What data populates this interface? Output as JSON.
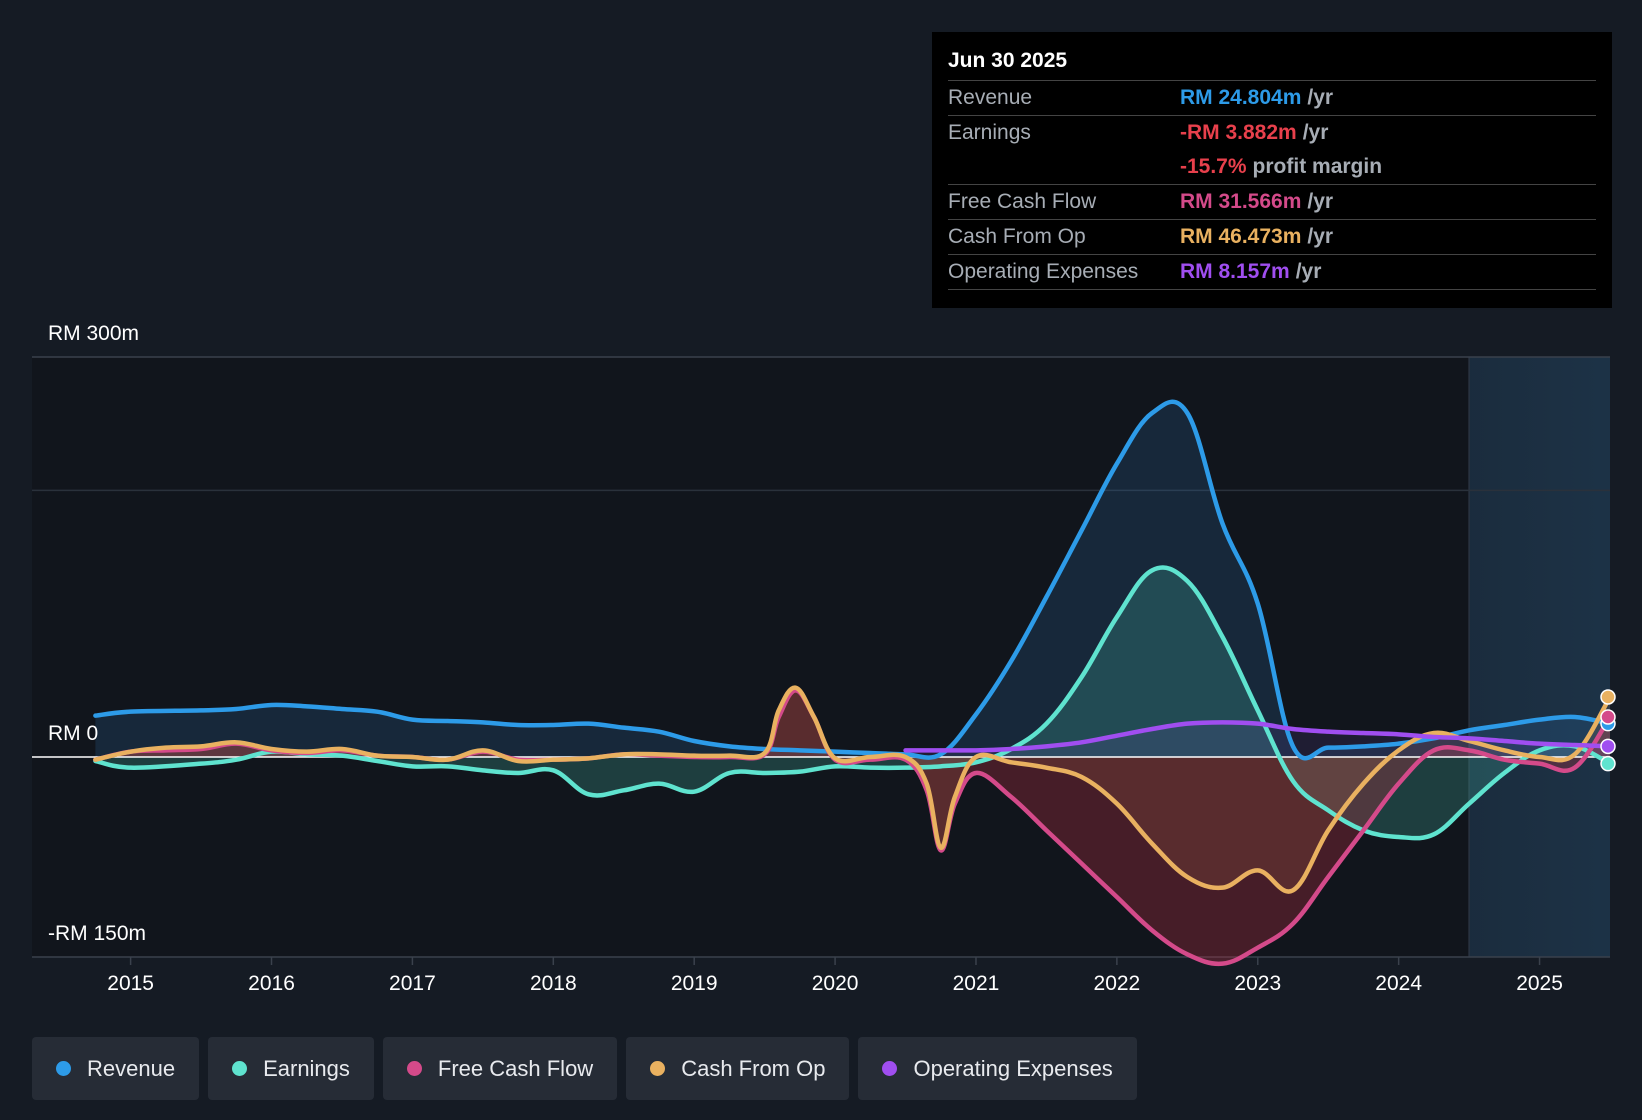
{
  "tooltip": {
    "date": "Jun 30 2025",
    "rows": [
      {
        "label": "Revenue",
        "value": "RM 24.804m",
        "unit": "/yr",
        "color": "#2d9be8"
      },
      {
        "label": "Earnings",
        "value": "-RM 3.882m",
        "unit": "/yr",
        "color": "#e8404c"
      },
      {
        "label": "",
        "value": "-15.7%",
        "unit": "profit margin",
        "color": "#e8404c"
      },
      {
        "label": "Free Cash Flow",
        "value": "RM 31.566m",
        "unit": "/yr",
        "color": "#d44a8a"
      },
      {
        "label": "Cash From Op",
        "value": "RM 46.473m",
        "unit": "/yr",
        "color": "#e9b160"
      },
      {
        "label": "Operating Expenses",
        "value": "RM 8.157m",
        "unit": "/yr",
        "color": "#a04ef0"
      }
    ]
  },
  "legend": [
    {
      "label": "Revenue",
      "color": "#2d9be8"
    },
    {
      "label": "Earnings",
      "color": "#5fe3cf"
    },
    {
      "label": "Free Cash Flow",
      "color": "#d44a8a"
    },
    {
      "label": "Cash From Op",
      "color": "#e9b160"
    },
    {
      "label": "Operating Expenses",
      "color": "#a04ef0"
    }
  ],
  "chart_data": {
    "type": "line",
    "title": "",
    "xlabel": "",
    "ylabel": "",
    "y_axis_labels": [
      "RM 300m",
      "RM 0",
      "-RM 150m"
    ],
    "ylim": [
      -150,
      300
    ],
    "xlim": [
      2014.3,
      2025.5
    ],
    "x_ticks": [
      2015,
      2016,
      2017,
      2018,
      2019,
      2020,
      2021,
      2022,
      2023,
      2024,
      2025
    ],
    "x_tick_labels": [
      "2015",
      "2016",
      "2017",
      "2018",
      "2019",
      "2020",
      "2021",
      "2022",
      "2023",
      "2024",
      "2025"
    ],
    "forecast_start": 2024.5,
    "series": [
      {
        "name": "Revenue",
        "color": "#2d9be8",
        "x": [
          2014.75,
          2015.0,
          2015.5,
          2015.75,
          2016.0,
          2016.25,
          2016.5,
          2016.75,
          2017.0,
          2017.25,
          2017.5,
          2017.75,
          2018.0,
          2018.25,
          2018.5,
          2018.75,
          2019.0,
          2019.25,
          2019.5,
          2019.75,
          2020.0,
          2020.25,
          2020.5,
          2020.75,
          2021.0,
          2021.25,
          2021.5,
          2021.75,
          2022.0,
          2022.25,
          2022.5,
          2022.75,
          2023.0,
          2023.25,
          2023.5,
          2023.75,
          2024.0,
          2024.25,
          2024.5,
          2024.75,
          2025.0,
          2025.25,
          2025.5
        ],
        "values": [
          31,
          34,
          35,
          36,
          39,
          38,
          36,
          34,
          28,
          27,
          26,
          24,
          24,
          25,
          22,
          19,
          12,
          8,
          6,
          5,
          4,
          3,
          2,
          2,
          32,
          72,
          120,
          170,
          220,
          258,
          258,
          175,
          115,
          8,
          7,
          8,
          10,
          14,
          20,
          24,
          28,
          30,
          25
        ]
      },
      {
        "name": "Earnings",
        "color": "#5fe3cf",
        "x": [
          2014.75,
          2015.0,
          2015.5,
          2015.75,
          2016.0,
          2016.25,
          2016.5,
          2016.75,
          2017.0,
          2017.25,
          2017.5,
          2017.75,
          2018.0,
          2018.25,
          2018.5,
          2018.75,
          2019.0,
          2019.25,
          2019.5,
          2019.75,
          2020.0,
          2020.25,
          2020.5,
          2020.75,
          2021.0,
          2021.25,
          2021.5,
          2021.75,
          2022.0,
          2022.25,
          2022.5,
          2022.75,
          2023.0,
          2023.25,
          2023.5,
          2023.75,
          2024.0,
          2024.25,
          2024.5,
          2024.75,
          2025.0,
          2025.25,
          2025.5
        ],
        "values": [
          -3,
          -8,
          -5,
          -2,
          4,
          2,
          1,
          -3,
          -7,
          -7,
          -10,
          -12,
          -10,
          -28,
          -25,
          -20,
          -26,
          -12,
          -12,
          -11,
          -7,
          -8,
          -8,
          -7,
          -4,
          6,
          25,
          60,
          105,
          140,
          132,
          90,
          35,
          -18,
          -40,
          -55,
          -60,
          -58,
          -35,
          -12,
          5,
          8,
          -5
        ]
      },
      {
        "name": "Free Cash Flow",
        "color": "#d44a8a",
        "x": [
          2014.75,
          2015.0,
          2015.25,
          2015.5,
          2015.75,
          2016.0,
          2016.25,
          2016.5,
          2016.75,
          2017.0,
          2017.25,
          2017.5,
          2017.75,
          2018.0,
          2018.25,
          2018.5,
          2018.75,
          2019.0,
          2019.25,
          2019.5,
          2019.6,
          2019.72,
          2019.85,
          2020.0,
          2020.25,
          2020.5,
          2020.65,
          2020.75,
          2020.85,
          2021.0,
          2021.25,
          2021.5,
          2021.75,
          2022.0,
          2022.25,
          2022.5,
          2022.75,
          2023.0,
          2023.25,
          2023.5,
          2023.75,
          2024.0,
          2024.25,
          2024.5,
          2024.75,
          2025.0,
          2025.25,
          2025.5
        ],
        "values": [
          -2,
          4,
          5,
          6,
          10,
          5,
          3,
          5,
          1,
          0,
          -2,
          4,
          -2,
          -2,
          -1,
          2,
          1,
          0,
          0,
          2,
          30,
          50,
          30,
          -2,
          -2,
          -2,
          -25,
          -70,
          -35,
          -12,
          -30,
          -55,
          -80,
          -105,
          -130,
          -148,
          -155,
          -143,
          -125,
          -90,
          -55,
          -20,
          5,
          5,
          -2,
          -5,
          -8,
          30
        ]
      },
      {
        "name": "Cash From Op",
        "color": "#e9b160",
        "x": [
          2014.75,
          2015.0,
          2015.25,
          2015.5,
          2015.75,
          2016.0,
          2016.25,
          2016.5,
          2016.75,
          2017.0,
          2017.25,
          2017.5,
          2017.75,
          2018.0,
          2018.25,
          2018.5,
          2018.75,
          2019.0,
          2019.25,
          2019.5,
          2019.6,
          2019.72,
          2019.85,
          2020.0,
          2020.25,
          2020.5,
          2020.65,
          2020.75,
          2020.85,
          2021.0,
          2021.25,
          2021.5,
          2021.75,
          2022.0,
          2022.25,
          2022.5,
          2022.75,
          2023.0,
          2023.25,
          2023.5,
          2023.75,
          2024.0,
          2024.25,
          2024.5,
          2024.75,
          2025.0,
          2025.25,
          2025.5
        ],
        "values": [
          -2,
          4,
          7,
          8,
          11,
          6,
          4,
          6,
          1,
          0,
          -2,
          5,
          -3,
          -2,
          -1,
          2,
          2,
          1,
          1,
          3,
          35,
          52,
          30,
          -1,
          0,
          0,
          -20,
          -68,
          -30,
          0,
          -4,
          -8,
          -15,
          -35,
          -65,
          -90,
          -98,
          -85,
          -100,
          -55,
          -20,
          5,
          18,
          12,
          5,
          0,
          2,
          45
        ]
      },
      {
        "name": "Operating Expenses",
        "color": "#a04ef0",
        "x": [
          2020.5,
          2020.75,
          2021.0,
          2021.25,
          2021.5,
          2021.75,
          2022.0,
          2022.25,
          2022.5,
          2022.75,
          2023.0,
          2023.25,
          2023.5,
          2023.75,
          2024.0,
          2024.25,
          2024.5,
          2024.75,
          2025.0,
          2025.25,
          2025.5
        ],
        "values": [
          5,
          5,
          5,
          6,
          8,
          11,
          16,
          21,
          25,
          26,
          25,
          21,
          19,
          18,
          17,
          15,
          14,
          12,
          10,
          9,
          8
        ]
      }
    ]
  }
}
